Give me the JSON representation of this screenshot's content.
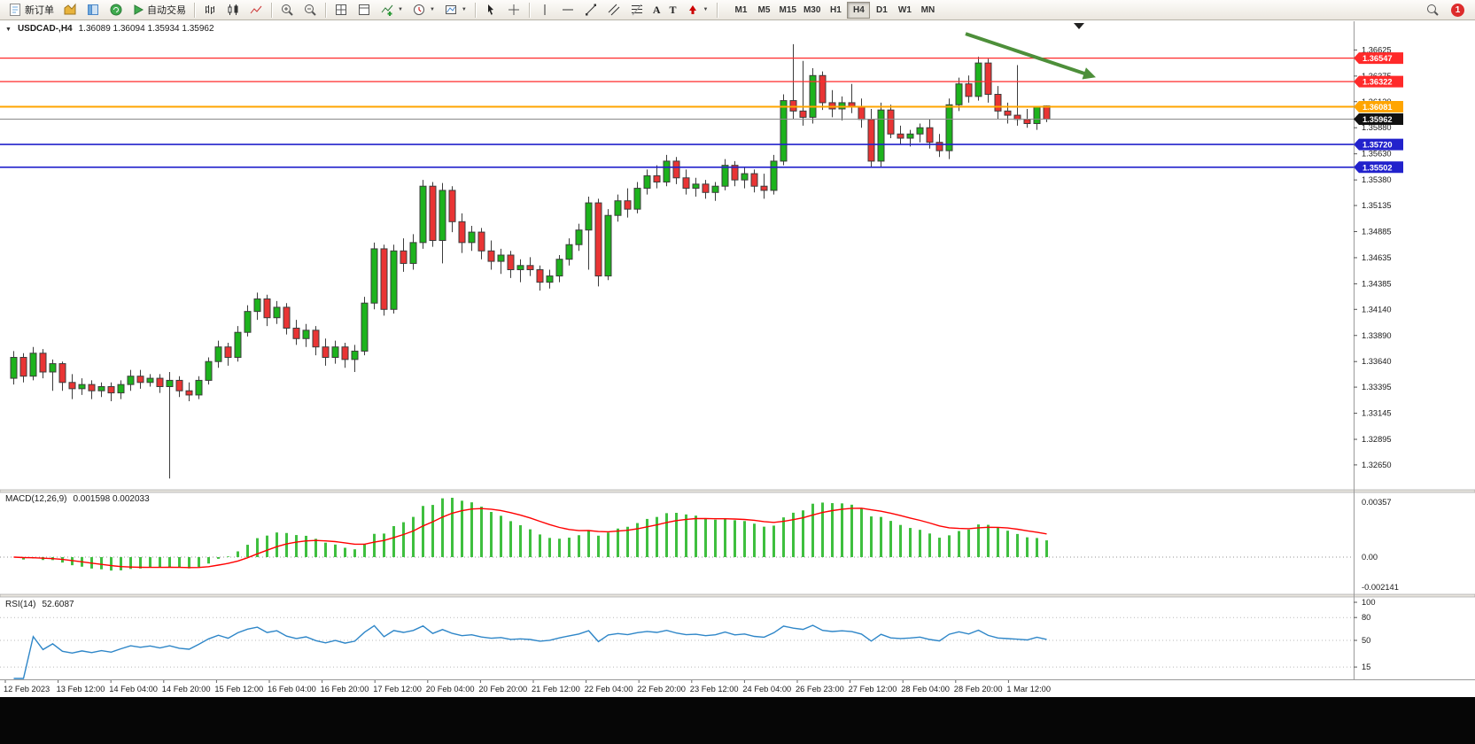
{
  "toolbar": {
    "new_order_label": "新订单",
    "auto_trading_label": "自动交易",
    "text_tool_label": "A",
    "label_tool_label": "T",
    "timeframes": [
      "M1",
      "M5",
      "M15",
      "M30",
      "H1",
      "H4",
      "D1",
      "W1",
      "MN"
    ],
    "active_timeframe": "H4",
    "notification_badge": "1"
  },
  "chart": {
    "title": "USDCAD-,H4",
    "ohlc_line": "1.36089 1.36094 1.35934 1.35962",
    "price_axis_ticks": [
      "1.36625",
      "1.36375",
      "1.36130",
      "1.35880",
      "1.35630",
      "1.35380",
      "1.35135",
      "1.34885",
      "1.34635",
      "1.34385",
      "1.34140",
      "1.33890",
      "1.33640",
      "1.33395",
      "1.33145",
      "1.32895",
      "1.32650"
    ],
    "bid": {
      "price": 1.35962,
      "label": "1.35962",
      "box_color": "#111111"
    },
    "level_lines": [
      {
        "price": 1.36547,
        "label": "1.36547",
        "color": "#ff2a2a",
        "width": 1.3
      },
      {
        "price": 1.36322,
        "label": "1.36322",
        "color": "#ff2a2a",
        "width": 1.3
      },
      {
        "price": 1.36081,
        "label": "1.36081",
        "color": "#ffa500",
        "width": 2
      },
      {
        "price": 1.3572,
        "label": "1.35720",
        "color": "#2222cc",
        "width": 1.6
      },
      {
        "price": 1.35502,
        "label": "1.35502",
        "color": "#2222cc",
        "width": 1.6
      }
    ],
    "time_labels": [
      "12 Feb 2023",
      "13 Feb 12:00",
      "14 Feb 04:00",
      "14 Feb 20:00",
      "15 Feb 12:00",
      "16 Feb 04:00",
      "16 Feb 20:00",
      "17 Feb 12:00",
      "20 Feb 04:00",
      "20 Feb 20:00",
      "21 Feb 12:00",
      "22 Feb 04:00",
      "22 Feb 20:00",
      "23 Feb 12:00",
      "24 Feb 04:00",
      "26 Feb 23:00",
      "27 Feb 12:00",
      "28 Feb 04:00",
      "28 Feb 20:00",
      "1 Mar 12:00"
    ],
    "colors": {
      "up": "#1db31d",
      "down": "#e93434",
      "outline": "#3c3c3c",
      "bid_line": "#8a8a8a",
      "macd_hist": "#3fbf3f",
      "macd_signal": "#ff0000",
      "rsi_line": "#2e86c8",
      "arrow": "#4d8f3a"
    }
  },
  "macd": {
    "label": "MACD(12,26,9)",
    "values": "0.001598 0.002033",
    "axis_labels": [
      "0.00357",
      "0.00",
      "-0.002141"
    ]
  },
  "rsi": {
    "label": "RSI(14)",
    "value": "52.6087",
    "axis_labels": [
      {
        "value": 100,
        "label": "100"
      },
      {
        "value": 80,
        "label": "80"
      },
      {
        "value": 50,
        "label": "50"
      },
      {
        "value": 15,
        "label": "15"
      }
    ],
    "dashed_levels": [
      80,
      50,
      15
    ]
  },
  "chart_data": {
    "type": "candlestick",
    "symbol": "USDCAD",
    "timeframe": "H4",
    "last_ohlc": {
      "open": 1.36089,
      "high": 1.36094,
      "low": 1.35934,
      "close": 1.35962
    },
    "price_range": {
      "max": 1.369,
      "min": 1.3242
    },
    "indicators": [
      {
        "name": "MACD",
        "params": [
          12,
          26,
          9
        ],
        "value": 0.001598,
        "signal": 0.002033
      },
      {
        "name": "RSI",
        "params": [
          14
        ],
        "value": 52.6087
      }
    ],
    "annotations": [
      {
        "type": "trend-arrow",
        "direction": "down-right",
        "color": "#4d8f3a",
        "from": {
          "bar": 98,
          "price": 1.3678
        },
        "to": {
          "bar": 110.5,
          "price": 1.3639
        }
      }
    ],
    "candles": [
      [
        1.3348,
        1.3374,
        1.3342,
        1.3368
      ],
      [
        1.3368,
        1.3372,
        1.3344,
        1.335
      ],
      [
        1.335,
        1.3378,
        1.3346,
        1.3372
      ],
      [
        1.3372,
        1.3376,
        1.3348,
        1.3354
      ],
      [
        1.3354,
        1.3366,
        1.3336,
        1.3362
      ],
      [
        1.3362,
        1.3364,
        1.3336,
        1.3344
      ],
      [
        1.3344,
        1.3352,
        1.3328,
        1.3338
      ],
      [
        1.3338,
        1.3348,
        1.3332,
        1.3342
      ],
      [
        1.3342,
        1.3346,
        1.3328,
        1.3336
      ],
      [
        1.3336,
        1.3344,
        1.333,
        1.334
      ],
      [
        1.334,
        1.3344,
        1.3326,
        1.3334
      ],
      [
        1.3334,
        1.3346,
        1.3328,
        1.3342
      ],
      [
        1.3342,
        1.3356,
        1.3336,
        1.335
      ],
      [
        1.335,
        1.3356,
        1.3338,
        1.3344
      ],
      [
        1.3344,
        1.3352,
        1.334,
        1.3348
      ],
      [
        1.3348,
        1.3352,
        1.3334,
        1.334
      ],
      [
        1.334,
        1.3354,
        1.3252,
        1.3346
      ],
      [
        1.3346,
        1.335,
        1.333,
        1.3336
      ],
      [
        1.3336,
        1.3344,
        1.3326,
        1.3332
      ],
      [
        1.3332,
        1.335,
        1.3328,
        1.3346
      ],
      [
        1.3346,
        1.3368,
        1.3342,
        1.3364
      ],
      [
        1.3364,
        1.3384,
        1.3358,
        1.3378
      ],
      [
        1.3378,
        1.3382,
        1.336,
        1.3368
      ],
      [
        1.3368,
        1.3398,
        1.3364,
        1.3392
      ],
      [
        1.3392,
        1.3418,
        1.3388,
        1.3412
      ],
      [
        1.3412,
        1.343,
        1.3404,
        1.3424
      ],
      [
        1.3424,
        1.3428,
        1.3398,
        1.3406
      ],
      [
        1.3406,
        1.3422,
        1.34,
        1.3416
      ],
      [
        1.3416,
        1.342,
        1.339,
        1.3396
      ],
      [
        1.3396,
        1.3404,
        1.338,
        1.3386
      ],
      [
        1.3386,
        1.34,
        1.3378,
        1.3394
      ],
      [
        1.3394,
        1.3398,
        1.337,
        1.3378
      ],
      [
        1.3378,
        1.3386,
        1.336,
        1.3368
      ],
      [
        1.3368,
        1.3384,
        1.3362,
        1.3378
      ],
      [
        1.3378,
        1.3382,
        1.3358,
        1.3366
      ],
      [
        1.3366,
        1.338,
        1.3354,
        1.3374
      ],
      [
        1.3374,
        1.3426,
        1.337,
        1.342
      ],
      [
        1.342,
        1.3478,
        1.3414,
        1.3472
      ],
      [
        1.3472,
        1.3476,
        1.3408,
        1.3414
      ],
      [
        1.3414,
        1.3476,
        1.341,
        1.347
      ],
      [
        1.347,
        1.3482,
        1.345,
        1.3458
      ],
      [
        1.3458,
        1.3486,
        1.3452,
        1.3478
      ],
      [
        1.3478,
        1.3538,
        1.3472,
        1.3532
      ],
      [
        1.3532,
        1.3536,
        1.3474,
        1.348
      ],
      [
        1.348,
        1.3535,
        1.3458,
        1.3528
      ],
      [
        1.3528,
        1.3532,
        1.3488,
        1.3498
      ],
      [
        1.3498,
        1.3506,
        1.3468,
        1.3478
      ],
      [
        1.3478,
        1.3494,
        1.347,
        1.3488
      ],
      [
        1.3488,
        1.3492,
        1.3462,
        1.347
      ],
      [
        1.347,
        1.348,
        1.3452,
        1.346
      ],
      [
        1.346,
        1.3472,
        1.3448,
        1.3466
      ],
      [
        1.3466,
        1.347,
        1.3444,
        1.3452
      ],
      [
        1.3452,
        1.3462,
        1.344,
        1.3456
      ],
      [
        1.3456,
        1.3464,
        1.3446,
        1.3452
      ],
      [
        1.3452,
        1.3456,
        1.3432,
        1.344
      ],
      [
        1.344,
        1.3452,
        1.3434,
        1.3446
      ],
      [
        1.3446,
        1.3466,
        1.344,
        1.3462
      ],
      [
        1.3462,
        1.3482,
        1.3456,
        1.3476
      ],
      [
        1.3476,
        1.3496,
        1.347,
        1.349
      ],
      [
        1.349,
        1.3522,
        1.3452,
        1.3516
      ],
      [
        1.3516,
        1.352,
        1.3436,
        1.3446
      ],
      [
        1.3446,
        1.351,
        1.3442,
        1.3504
      ],
      [
        1.3504,
        1.3524,
        1.3498,
        1.3518
      ],
      [
        1.3518,
        1.353,
        1.3502,
        1.351
      ],
      [
        1.351,
        1.3536,
        1.3506,
        1.353
      ],
      [
        1.353,
        1.3548,
        1.3524,
        1.3542
      ],
      [
        1.3542,
        1.3552,
        1.353,
        1.3536
      ],
      [
        1.3536,
        1.3562,
        1.3532,
        1.3556
      ],
      [
        1.3556,
        1.356,
        1.3534,
        1.354
      ],
      [
        1.354,
        1.3548,
        1.3524,
        1.353
      ],
      [
        1.353,
        1.354,
        1.3522,
        1.3534
      ],
      [
        1.3534,
        1.3538,
        1.352,
        1.3526
      ],
      [
        1.3526,
        1.3536,
        1.3518,
        1.3532
      ],
      [
        1.3532,
        1.3558,
        1.3528,
        1.3552
      ],
      [
        1.3552,
        1.3556,
        1.3532,
        1.3538
      ],
      [
        1.3538,
        1.355,
        1.353,
        1.3544
      ],
      [
        1.3544,
        1.3548,
        1.3526,
        1.3532
      ],
      [
        1.3532,
        1.3544,
        1.352,
        1.3528
      ],
      [
        1.3528,
        1.3562,
        1.3524,
        1.3556
      ],
      [
        1.3556,
        1.362,
        1.3552,
        1.3614
      ],
      [
        1.3614,
        1.3668,
        1.3596,
        1.3604
      ],
      [
        1.3604,
        1.3652,
        1.359,
        1.3598
      ],
      [
        1.3598,
        1.3645,
        1.3592,
        1.3638
      ],
      [
        1.3638,
        1.3642,
        1.3605,
        1.3612
      ],
      [
        1.3612,
        1.3624,
        1.3598,
        1.3606
      ],
      [
        1.3606,
        1.3618,
        1.3595,
        1.3612
      ],
      [
        1.3612,
        1.363,
        1.3602,
        1.3608
      ],
      [
        1.3608,
        1.3616,
        1.3588,
        1.3596
      ],
      [
        1.3596,
        1.3606,
        1.355,
        1.3556
      ],
      [
        1.3556,
        1.3612,
        1.355,
        1.3605
      ],
      [
        1.3605,
        1.361,
        1.3578,
        1.3582
      ],
      [
        1.3582,
        1.359,
        1.3572,
        1.3578
      ],
      [
        1.3578,
        1.3586,
        1.357,
        1.3582
      ],
      [
        1.3582,
        1.3592,
        1.3574,
        1.3588
      ],
      [
        1.3588,
        1.3596,
        1.3568,
        1.3574
      ],
      [
        1.3574,
        1.3582,
        1.356,
        1.3566
      ],
      [
        1.3566,
        1.3616,
        1.3558,
        1.361
      ],
      [
        1.361,
        1.3636,
        1.3604,
        1.363
      ],
      [
        1.363,
        1.3638,
        1.3612,
        1.3618
      ],
      [
        1.3618,
        1.3656,
        1.3614,
        1.365
      ],
      [
        1.365,
        1.3654,
        1.3612,
        1.362
      ],
      [
        1.362,
        1.3628,
        1.3596,
        1.3604
      ],
      [
        1.3604,
        1.3612,
        1.3592,
        1.36
      ],
      [
        1.36,
        1.3648,
        1.359,
        1.3596
      ],
      [
        1.3596,
        1.3606,
        1.3588,
        1.3592
      ],
      [
        1.3592,
        1.3609,
        1.3586,
        1.3608
      ],
      [
        1.36089,
        1.36094,
        1.35934,
        1.35962
      ]
    ]
  }
}
